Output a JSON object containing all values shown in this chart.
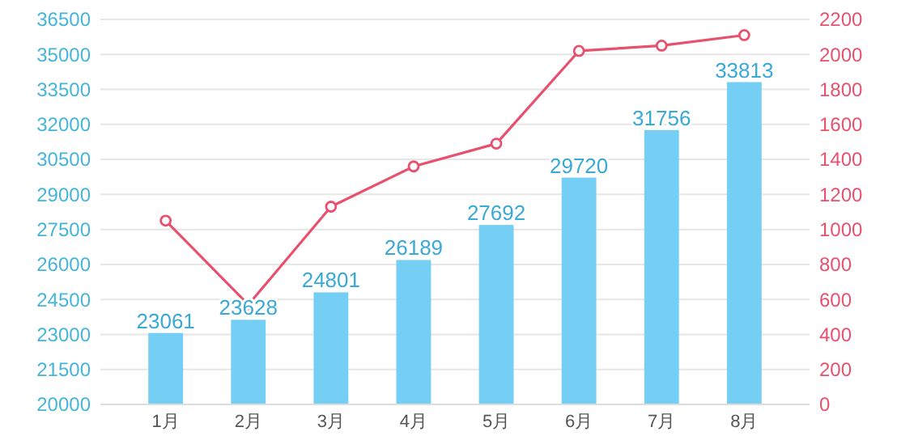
{
  "chart_data": {
    "type": "bar",
    "categories": [
      "1月",
      "2月",
      "3月",
      "4月",
      "5月",
      "6月",
      "7月",
      "8月"
    ],
    "series": [
      {
        "color": "#75cff5",
        "values": [
          23061,
          23628,
          24801,
          26189,
          27692,
          29720,
          31756,
          33813
        ],
        "value_labels": [
          "23061",
          "23628",
          "24801",
          "26189",
          "27692",
          "29720",
          "31756",
          "33813"
        ]
      },
      {
        "type": "line",
        "axis": "y2",
        "color": "#e8516e",
        "values": [
          1050,
          570,
          1130,
          1360,
          1490,
          2020,
          2050,
          2110
        ]
      }
    ],
    "ylim": [
      20000,
      36500
    ],
    "yticks": [
      20000,
      21500,
      23000,
      24500,
      26000,
      27500,
      29000,
      30500,
      32000,
      33500,
      35000,
      36500
    ],
    "y2lim": [
      0,
      2200
    ],
    "y2ticks": [
      0,
      200,
      400,
      600,
      800,
      1000,
      1200,
      1400,
      1600,
      1800,
      2000,
      2200
    ],
    "grid": "y",
    "marker": "circle"
  }
}
